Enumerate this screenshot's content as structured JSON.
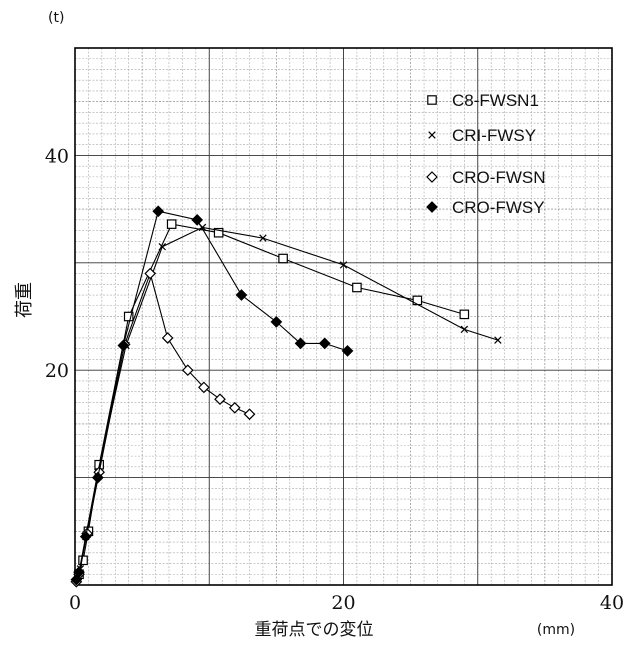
{
  "chart_data": {
    "type": "line",
    "title": "",
    "xlabel": "重荷点での変位",
    "xunit": "(mm)",
    "ylabel": "荷重",
    "yunit": "(t)",
    "xlim": [
      0,
      40
    ],
    "ylim": [
      0,
      50
    ],
    "xticks": [
      "0",
      "20",
      "40"
    ],
    "yticks": [
      "20",
      "40"
    ],
    "grid": true,
    "legend_position": "top-right",
    "series": [
      {
        "name": "C8-FWSN1",
        "marker": "open-square",
        "points": [
          [
            0.3,
            1
          ],
          [
            0.6,
            2.3
          ],
          [
            1,
            5
          ],
          [
            1.8,
            11.2
          ],
          [
            4,
            25
          ],
          [
            7.2,
            33.6
          ],
          [
            10.7,
            32.8
          ],
          [
            15.5,
            30.4
          ],
          [
            21,
            27.7
          ],
          [
            25.5,
            26.5
          ],
          [
            29,
            25.2
          ]
        ]
      },
      {
        "name": "CRI-FWSY",
        "marker": "x",
        "points": [
          [
            0.2,
            0.5
          ],
          [
            0.4,
            1.5
          ],
          [
            0.8,
            4.5
          ],
          [
            1.7,
            10.5
          ],
          [
            3.8,
            22.3
          ],
          [
            6.5,
            31.5
          ],
          [
            9.5,
            33.3
          ],
          [
            14,
            32.3
          ],
          [
            20,
            29.8
          ],
          [
            29,
            23.8
          ],
          [
            31.5,
            22.8
          ]
        ]
      },
      {
        "name": "CRO-FWSN",
        "marker": "open-diamond",
        "points": [
          [
            0.1,
            0.3
          ],
          [
            0.3,
            1
          ],
          [
            0.9,
            4.8
          ],
          [
            1.8,
            10.5
          ],
          [
            3.7,
            22.4
          ],
          [
            5.6,
            29
          ],
          [
            6.9,
            23
          ],
          [
            8.4,
            20
          ],
          [
            9.6,
            18.4
          ],
          [
            10.8,
            17.3
          ],
          [
            11.9,
            16.5
          ],
          [
            13,
            15.9
          ]
        ]
      },
      {
        "name": "CRO-FWSY",
        "marker": "filled-diamond",
        "points": [
          [
            0.1,
            0.5
          ],
          [
            0.3,
            1.2
          ],
          [
            0.8,
            4.5
          ],
          [
            1.7,
            10
          ],
          [
            3.6,
            22.3
          ],
          [
            6.2,
            34.8
          ],
          [
            9.1,
            34
          ],
          [
            12.4,
            27
          ],
          [
            15,
            24.5
          ],
          [
            16.8,
            22.5
          ],
          [
            18.6,
            22.5
          ],
          [
            20.3,
            21.8
          ]
        ]
      }
    ]
  }
}
